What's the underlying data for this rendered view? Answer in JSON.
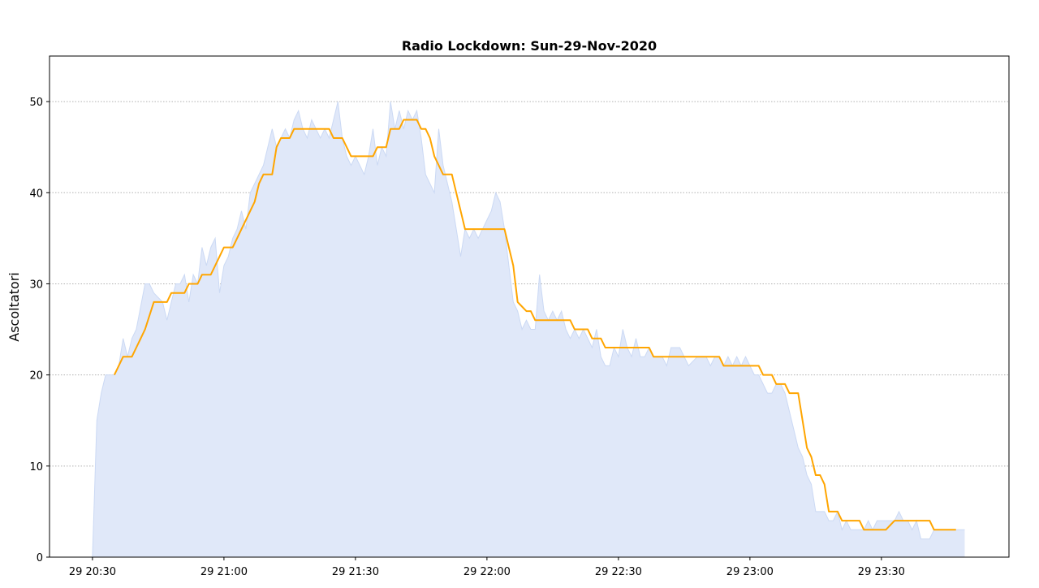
{
  "chart_data": {
    "type": "line",
    "title": "Radio Lockdown: Sun-29-Nov-2020",
    "xlabel": "",
    "ylabel": "Ascoltatori",
    "xlim": [
      "20:20",
      "23:59"
    ],
    "ylim": [
      0,
      55
    ],
    "grid": "y-dotted",
    "x_ticks": [
      "20:30",
      "21:00",
      "21:30",
      "22:00",
      "22:30",
      "23:00",
      "23:30"
    ],
    "x_tick_labels": [
      "29 20:30",
      "29 21:00",
      "29 21:30",
      "29 22:00",
      "29 22:30",
      "29 23:00",
      "29 23:30"
    ],
    "y_ticks": [
      0,
      10,
      20,
      30,
      40,
      50
    ],
    "colors": {
      "raw_fill": "#e0e8f9",
      "raw_line": "#cbd9f4",
      "average_line": "#ffa500"
    },
    "series": [
      {
        "style": "area",
        "points": [
          [
            "20:30",
            0
          ],
          [
            "20:31",
            15
          ],
          [
            "20:32",
            18
          ],
          [
            "20:33",
            20
          ],
          [
            "20:35",
            20
          ],
          [
            "20:36",
            21
          ],
          [
            "20:37",
            24
          ],
          [
            "20:38",
            22
          ],
          [
            "20:39",
            24
          ],
          [
            "20:40",
            25
          ],
          [
            "20:42",
            30
          ],
          [
            "20:43",
            30
          ],
          [
            "20:44",
            29
          ],
          [
            "20:46",
            28
          ],
          [
            "20:47",
            26
          ],
          [
            "20:48",
            28
          ],
          [
            "20:49",
            30
          ],
          [
            "20:50",
            30
          ],
          [
            "20:51",
            31
          ],
          [
            "20:52",
            28
          ],
          [
            "20:53",
            31
          ],
          [
            "20:54",
            30
          ],
          [
            "20:55",
            34
          ],
          [
            "20:56",
            32
          ],
          [
            "20:57",
            34
          ],
          [
            "20:58",
            35
          ],
          [
            "20:59",
            29
          ],
          [
            "21:00",
            32
          ],
          [
            "21:01",
            33
          ],
          [
            "21:02",
            35
          ],
          [
            "21:03",
            36
          ],
          [
            "21:04",
            38
          ],
          [
            "21:05",
            36
          ],
          [
            "21:06",
            40
          ],
          [
            "21:07",
            41
          ],
          [
            "21:08",
            42
          ],
          [
            "21:09",
            43
          ],
          [
            "21:10",
            45
          ],
          [
            "21:11",
            47
          ],
          [
            "21:12",
            45
          ],
          [
            "21:13",
            46
          ],
          [
            "21:14",
            47
          ],
          [
            "21:15",
            46
          ],
          [
            "21:16",
            48
          ],
          [
            "21:17",
            49
          ],
          [
            "21:18",
            47
          ],
          [
            "21:19",
            46
          ],
          [
            "21:20",
            48
          ],
          [
            "21:21",
            47
          ],
          [
            "21:22",
            46
          ],
          [
            "21:23",
            47
          ],
          [
            "21:24",
            46
          ],
          [
            "21:25",
            48
          ],
          [
            "21:26",
            50
          ],
          [
            "21:27",
            46
          ],
          [
            "21:28",
            44
          ],
          [
            "21:29",
            43
          ],
          [
            "21:30",
            44
          ],
          [
            "21:31",
            43
          ],
          [
            "21:32",
            42
          ],
          [
            "21:33",
            44
          ],
          [
            "21:34",
            47
          ],
          [
            "21:35",
            43
          ],
          [
            "21:36",
            45
          ],
          [
            "21:37",
            44
          ],
          [
            "21:38",
            50
          ],
          [
            "21:39",
            47
          ],
          [
            "21:40",
            49
          ],
          [
            "21:41",
            47
          ],
          [
            "21:42",
            49
          ],
          [
            "21:43",
            48
          ],
          [
            "21:44",
            49
          ],
          [
            "21:45",
            46
          ],
          [
            "21:46",
            42
          ],
          [
            "21:47",
            41
          ],
          [
            "21:48",
            40
          ],
          [
            "21:49",
            47
          ],
          [
            "21:50",
            43
          ],
          [
            "21:51",
            41
          ],
          [
            "21:52",
            39
          ],
          [
            "21:53",
            36
          ],
          [
            "21:54",
            33
          ],
          [
            "21:55",
            36
          ],
          [
            "21:56",
            35
          ],
          [
            "21:57",
            36
          ],
          [
            "21:58",
            35
          ],
          [
            "21:59",
            36
          ],
          [
            "22:00",
            37
          ],
          [
            "22:01",
            38
          ],
          [
            "22:02",
            40
          ],
          [
            "22:03",
            39
          ],
          [
            "22:04",
            36
          ],
          [
            "22:05",
            32
          ],
          [
            "22:06",
            28
          ],
          [
            "22:07",
            27
          ],
          [
            "22:08",
            25
          ],
          [
            "22:09",
            26
          ],
          [
            "22:10",
            25
          ],
          [
            "22:11",
            25
          ],
          [
            "22:12",
            31
          ],
          [
            "22:13",
            27
          ],
          [
            "22:14",
            26
          ],
          [
            "22:15",
            27
          ],
          [
            "22:16",
            26
          ],
          [
            "22:17",
            27
          ],
          [
            "22:18",
            25
          ],
          [
            "22:19",
            24
          ],
          [
            "22:20",
            25
          ],
          [
            "22:21",
            24
          ],
          [
            "22:22",
            25
          ],
          [
            "22:23",
            24
          ],
          [
            "22:24",
            23
          ],
          [
            "22:25",
            25
          ],
          [
            "22:26",
            22
          ],
          [
            "22:27",
            21
          ],
          [
            "22:28",
            21
          ],
          [
            "22:29",
            23
          ],
          [
            "22:30",
            22
          ],
          [
            "22:31",
            25
          ],
          [
            "22:32",
            23
          ],
          [
            "22:33",
            22
          ],
          [
            "22:34",
            24
          ],
          [
            "22:35",
            22
          ],
          [
            "22:36",
            22
          ],
          [
            "22:37",
            23
          ],
          [
            "22:38",
            22
          ],
          [
            "22:40",
            22
          ],
          [
            "22:41",
            21
          ],
          [
            "22:42",
            23
          ],
          [
            "22:44",
            23
          ],
          [
            "22:45",
            22
          ],
          [
            "22:46",
            21
          ],
          [
            "22:48",
            22
          ],
          [
            "22:50",
            22
          ],
          [
            "22:51",
            21
          ],
          [
            "22:52",
            22
          ],
          [
            "22:53",
            22
          ],
          [
            "22:54",
            21
          ],
          [
            "22:55",
            22
          ],
          [
            "22:56",
            21
          ],
          [
            "22:57",
            22
          ],
          [
            "22:58",
            21
          ],
          [
            "22:59",
            22
          ],
          [
            "23:00",
            21
          ],
          [
            "23:01",
            20
          ],
          [
            "23:02",
            20
          ],
          [
            "23:03",
            19
          ],
          [
            "23:04",
            18
          ],
          [
            "23:05",
            18
          ],
          [
            "23:06",
            19
          ],
          [
            "23:07",
            19
          ],
          [
            "23:08",
            18
          ],
          [
            "23:09",
            16
          ],
          [
            "23:10",
            14
          ],
          [
            "23:11",
            12
          ],
          [
            "23:12",
            11
          ],
          [
            "23:13",
            9
          ],
          [
            "23:14",
            8
          ],
          [
            "23:15",
            5
          ],
          [
            "23:17",
            5
          ],
          [
            "23:18",
            4
          ],
          [
            "23:19",
            4
          ],
          [
            "23:20",
            5
          ],
          [
            "23:21",
            3
          ],
          [
            "23:22",
            4
          ],
          [
            "23:23",
            3
          ],
          [
            "23:26",
            3
          ],
          [
            "23:27",
            4
          ],
          [
            "23:28",
            3
          ],
          [
            "23:29",
            4
          ],
          [
            "23:33",
            4
          ],
          [
            "23:34",
            5
          ],
          [
            "23:35",
            4
          ],
          [
            "23:36",
            4
          ],
          [
            "23:37",
            3
          ],
          [
            "23:38",
            4
          ],
          [
            "23:39",
            2
          ],
          [
            "23:41",
            2
          ],
          [
            "23:42",
            3
          ],
          [
            "23:49",
            3
          ]
        ]
      },
      {
        "style": "line",
        "points": [
          [
            "20:35",
            20
          ],
          [
            "20:37",
            22
          ],
          [
            "20:39",
            22
          ],
          [
            "20:40",
            23
          ],
          [
            "20:41",
            24
          ],
          [
            "20:42",
            25
          ],
          [
            "20:44",
            28
          ],
          [
            "20:47",
            28
          ],
          [
            "20:48",
            29
          ],
          [
            "20:51",
            29
          ],
          [
            "20:52",
            30
          ],
          [
            "20:54",
            30
          ],
          [
            "20:55",
            31
          ],
          [
            "20:57",
            31
          ],
          [
            "20:58",
            32
          ],
          [
            "20:59",
            33
          ],
          [
            "21:00",
            34
          ],
          [
            "21:02",
            34
          ],
          [
            "21:03",
            35
          ],
          [
            "21:04",
            36
          ],
          [
            "21:05",
            37
          ],
          [
            "21:06",
            38
          ],
          [
            "21:07",
            39
          ],
          [
            "21:08",
            41
          ],
          [
            "21:09",
            42
          ],
          [
            "21:11",
            42
          ],
          [
            "21:12",
            45
          ],
          [
            "21:13",
            46
          ],
          [
            "21:15",
            46
          ],
          [
            "21:16",
            47
          ],
          [
            "21:24",
            47
          ],
          [
            "21:25",
            46
          ],
          [
            "21:27",
            46
          ],
          [
            "21:28",
            45
          ],
          [
            "21:29",
            44
          ],
          [
            "21:34",
            44
          ],
          [
            "21:35",
            45
          ],
          [
            "21:37",
            45
          ],
          [
            "21:38",
            47
          ],
          [
            "21:40",
            47
          ],
          [
            "21:41",
            48
          ],
          [
            "21:44",
            48
          ],
          [
            "21:45",
            47
          ],
          [
            "21:46",
            47
          ],
          [
            "21:47",
            46
          ],
          [
            "21:48",
            44
          ],
          [
            "21:49",
            43
          ],
          [
            "21:50",
            42
          ],
          [
            "21:52",
            42
          ],
          [
            "21:53",
            40
          ],
          [
            "21:54",
            38
          ],
          [
            "21:55",
            36
          ],
          [
            "22:04",
            36
          ],
          [
            "22:05",
            34
          ],
          [
            "22:06",
            32
          ],
          [
            "22:07",
            28
          ],
          [
            "22:08",
            27.5
          ],
          [
            "22:09",
            27
          ],
          [
            "22:10",
            27
          ],
          [
            "22:11",
            26
          ],
          [
            "22:19",
            26
          ],
          [
            "22:20",
            25
          ],
          [
            "22:23",
            25
          ],
          [
            "22:24",
            24
          ],
          [
            "22:26",
            24
          ],
          [
            "22:27",
            23
          ],
          [
            "22:37",
            23
          ],
          [
            "22:38",
            22
          ],
          [
            "22:53",
            22
          ],
          [
            "22:54",
            21
          ],
          [
            "23:02",
            21
          ],
          [
            "23:03",
            20
          ],
          [
            "23:05",
            20
          ],
          [
            "23:06",
            19
          ],
          [
            "23:08",
            19
          ],
          [
            "23:09",
            18
          ],
          [
            "23:11",
            18
          ],
          [
            "23:12",
            15
          ],
          [
            "23:13",
            12
          ],
          [
            "23:14",
            11
          ],
          [
            "23:15",
            9
          ],
          [
            "23:16",
            9
          ],
          [
            "23:17",
            8
          ],
          [
            "23:18",
            5
          ],
          [
            "23:20",
            5
          ],
          [
            "23:21",
            4
          ],
          [
            "23:25",
            4
          ],
          [
            "23:26",
            3
          ],
          [
            "23:31",
            3
          ],
          [
            "23:32",
            3.5
          ],
          [
            "23:33",
            4
          ],
          [
            "23:41",
            4
          ],
          [
            "23:42",
            3
          ],
          [
            "23:47",
            3
          ]
        ]
      }
    ]
  }
}
